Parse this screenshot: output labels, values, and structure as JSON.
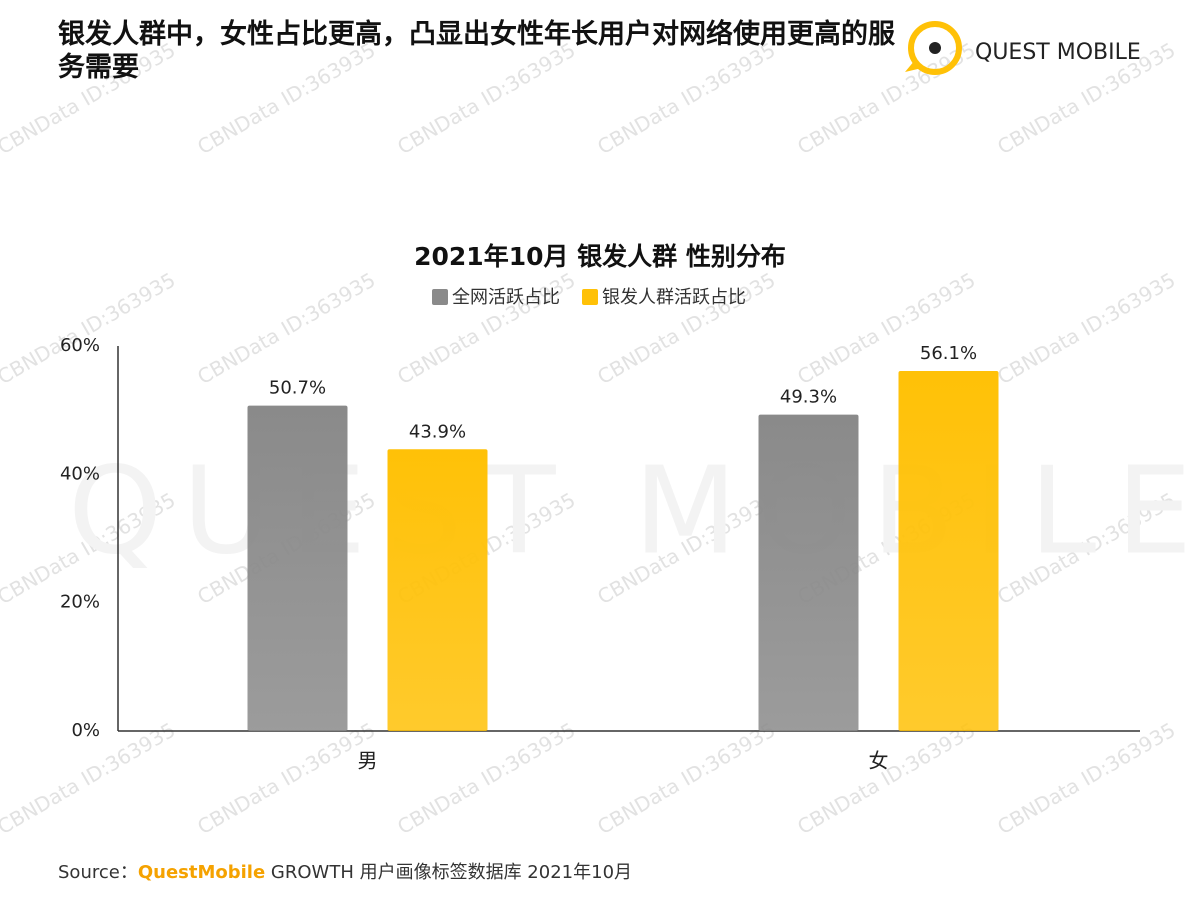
{
  "header": {
    "title": "银发人群中，女性占比更高，凸显出女性年长用户对网络使用更高的服务需要",
    "logo": "QUEST MOBILE"
  },
  "watermark": "CBNData ID:363935",
  "chart_data": {
    "type": "bar",
    "title": "2021年10月 银发人群 性别分布",
    "categories": [
      "男",
      "女"
    ],
    "series": [
      {
        "name": "全网活跃占比",
        "color": "#8a8a8a",
        "values": [
          50.7,
          49.3
        ],
        "value_labels": [
          "50.7%",
          "49.3%"
        ]
      },
      {
        "name": "银发人群活跃占比",
        "color": "#ffc107",
        "values": [
          43.9,
          56.1
        ],
        "value_labels": [
          "43.9%",
          "56.1%"
        ]
      }
    ],
    "ylim": [
      0,
      60
    ],
    "yticks": [
      {
        "value": 0,
        "label": "0%"
      },
      {
        "value": 20,
        "label": "20%"
      },
      {
        "value": 40,
        "label": "40%"
      },
      {
        "value": 60,
        "label": "60%"
      }
    ],
    "grid": false,
    "legend": "top"
  },
  "source": {
    "label": "Source：",
    "brand": "QuestMobile",
    "text": " GROWTH 用户画像标签数据库 2021年10月"
  }
}
